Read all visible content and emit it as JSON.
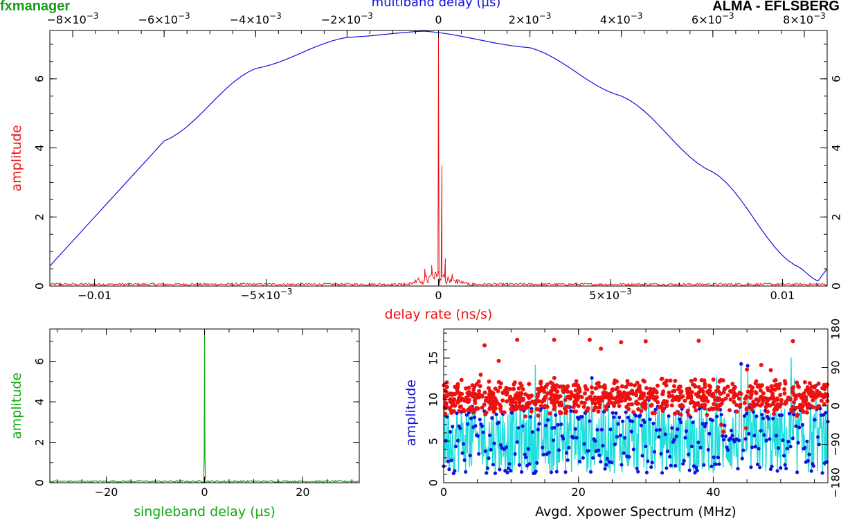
{
  "header": {
    "program": "fxmanager",
    "program_color": "#1a9a1a",
    "baseline": "ALMA - EFLSBERG"
  },
  "colors": {
    "red": "#ee1111",
    "blue": "#1111dd",
    "green": "#11aa11",
    "cyan": "#22dddd",
    "axis": "#000000"
  },
  "chart_data": [
    {
      "id": "top",
      "type": "line",
      "xlabel": "delay rate (ns/s)",
      "ylabel": "amplitude",
      "top_xlabel": "multiband delay (µs)",
      "xlim": [
        -0.0113,
        0.0113
      ],
      "ylim": [
        0,
        7.4
      ],
      "top_xlim": [
        -0.0085,
        0.0085
      ],
      "x_ticks": [
        {
          "v": -0.01,
          "base": "−0.01",
          "exp": ""
        },
        {
          "v": -0.005,
          "base": "−5×10",
          "exp": "−3"
        },
        {
          "v": 0,
          "base": "0",
          "exp": ""
        },
        {
          "v": 0.005,
          "base": "5×10",
          "exp": "−3"
        },
        {
          "v": 0.01,
          "base": "0.01",
          "exp": ""
        }
      ],
      "top_ticks": [
        {
          "v": -0.008,
          "base": "−8×10",
          "exp": "−3"
        },
        {
          "v": -0.006,
          "base": "−6×10",
          "exp": "−3"
        },
        {
          "v": -0.004,
          "base": "−4×10",
          "exp": "−3"
        },
        {
          "v": -0.002,
          "base": "−2×10",
          "exp": "−3"
        },
        {
          "v": 0,
          "base": "0",
          "exp": ""
        },
        {
          "v": 0.002,
          "base": "2×10",
          "exp": "−3"
        },
        {
          "v": 0.004,
          "base": "4×10",
          "exp": "−3"
        },
        {
          "v": 0.006,
          "base": "6×10",
          "exp": "−3"
        },
        {
          "v": 0.008,
          "base": "8×10",
          "exp": "−3"
        }
      ],
      "y_ticks": [
        "0",
        "2",
        "4",
        "6"
      ],
      "series": [
        {
          "axis": "bottom",
          "color": "red",
          "peak": {
            "x": 0,
            "y": 7.3
          },
          "noise_level": 0.05,
          "side_lobes": [
            [
              -0.0004,
              0.5
            ],
            [
              -0.0002,
              0.6
            ],
            [
              0.0001,
              3.5
            ],
            [
              0.0002,
              0.8
            ],
            [
              0.0004,
              0.35
            ]
          ]
        },
        {
          "axis": "top",
          "color": "blue",
          "shape": "arch",
          "x": [
            -0.0085,
            -0.006,
            -0.004,
            -0.002,
            -0.0003,
            0.002,
            0.004,
            0.006,
            0.0078,
            0.0083,
            0.0085
          ],
          "y": [
            0.58,
            4.2,
            6.3,
            7.2,
            7.38,
            6.9,
            5.5,
            3.3,
            0.6,
            0.15,
            0.5
          ]
        }
      ]
    },
    {
      "id": "bottom-left",
      "type": "line",
      "xlabel": "singleband delay (µs)",
      "ylabel": "amplitude",
      "xlim": [
        -31.5,
        31.5
      ],
      "ylim": [
        0,
        7.6
      ],
      "x_ticks": [
        "−20",
        "0",
        "20"
      ],
      "y_ticks": [
        "0",
        "2",
        "4",
        "6"
      ],
      "series": [
        {
          "color": "green",
          "peak": {
            "x": 0,
            "y": 7.5
          },
          "noise_level": 0.07
        }
      ]
    },
    {
      "id": "bottom-right",
      "type": "scatter",
      "xlabel": "Avgd. Xpower Spectrum (MHz)",
      "ylabel": "amplitude",
      "xlim": [
        0,
        57
      ],
      "ylim": [
        0,
        18.5
      ],
      "right_ylim": [
        -180,
        180
      ],
      "x_ticks": [
        "0",
        "20",
        "40"
      ],
      "y_ticks": [
        "0",
        "5",
        "10",
        "15"
      ],
      "right_ticks": [
        "−180",
        "−90",
        "0",
        "90",
        "180"
      ],
      "series": [
        {
          "name_key": "amplitude",
          "color": "blue",
          "line_color": "cyan",
          "mean": 5.2,
          "spread": 4.8,
          "max": 15.5
        },
        {
          "name_key": "phase",
          "color": "red",
          "mean": 10.3,
          "spread": 1.6,
          "max": 17.2
        }
      ]
    }
  ]
}
